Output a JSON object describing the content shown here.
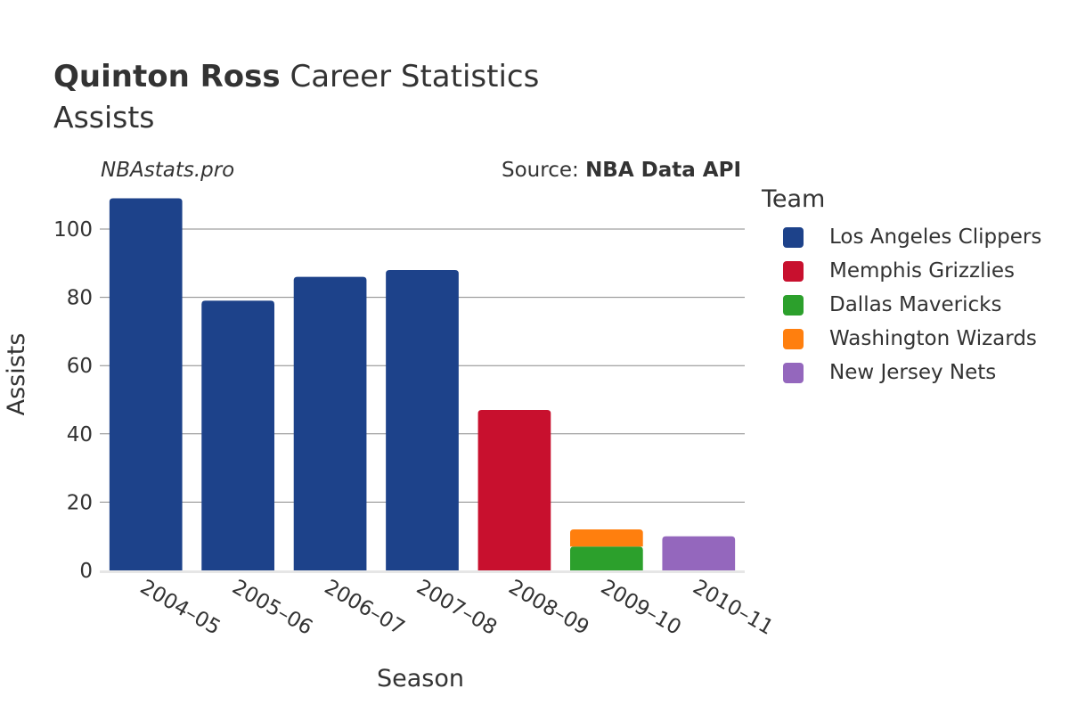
{
  "header": {
    "title_bold": "Quinton Ross",
    "title_rest": " Career Statistics",
    "subtitle": "Assists",
    "watermark": "NBAstats.pro",
    "source_prefix": "Source: ",
    "source_bold": "NBA Data API"
  },
  "legend": {
    "title": "Team",
    "items": [
      {
        "label": "Los Angeles Clippers",
        "color": "#1d428a"
      },
      {
        "label": "Memphis Grizzlies",
        "color": "#c8102e"
      },
      {
        "label": "Dallas Mavericks",
        "color": "#2ca02c"
      },
      {
        "label": "Washington Wizards",
        "color": "#ff7f0e"
      },
      {
        "label": "New Jersey Nets",
        "color": "#9467bd"
      }
    ]
  },
  "chart_data": {
    "type": "bar",
    "stacked": true,
    "title": "Quinton Ross Career Statistics",
    "subtitle": "Assists",
    "xlabel": "Season",
    "ylabel": "Assists",
    "ylim": [
      0,
      110
    ],
    "yticks": [
      0,
      20,
      40,
      60,
      80,
      100
    ],
    "grid": true,
    "legend_position": "right",
    "categories": [
      "2004–05",
      "2005–06",
      "2006–07",
      "2007–08",
      "2008–09",
      "2009–10",
      "2010–11"
    ],
    "series": [
      {
        "name": "Los Angeles Clippers",
        "color": "#1d428a",
        "values": [
          109,
          79,
          86,
          88,
          0,
          0,
          0
        ]
      },
      {
        "name": "Memphis Grizzlies",
        "color": "#c8102e",
        "values": [
          0,
          0,
          0,
          0,
          47,
          0,
          0
        ]
      },
      {
        "name": "Dallas Mavericks",
        "color": "#2ca02c",
        "values": [
          0,
          0,
          0,
          0,
          0,
          7,
          0
        ]
      },
      {
        "name": "Washington Wizards",
        "color": "#ff7f0e",
        "values": [
          0,
          0,
          0,
          0,
          0,
          5,
          0
        ]
      },
      {
        "name": "New Jersey Nets",
        "color": "#9467bd",
        "values": [
          0,
          0,
          0,
          0,
          0,
          0,
          10
        ]
      }
    ]
  }
}
